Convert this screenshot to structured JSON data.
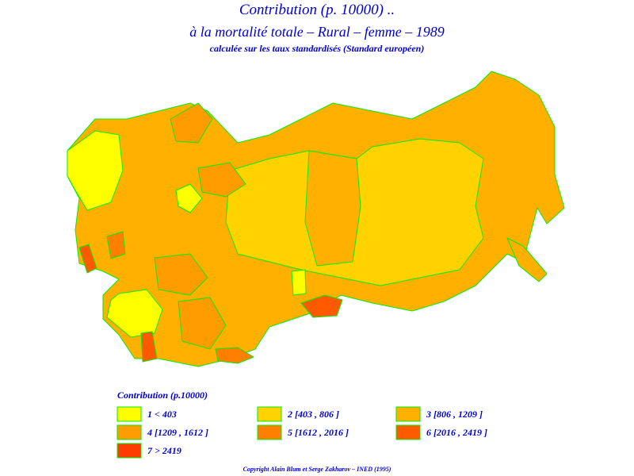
{
  "header": {
    "title": "Contribution  (p. 10000) ..",
    "subtitle": "à  la  mortalité  totale  –  Rural  –  femme  –  1989",
    "note": "calculée sur les taux standardisés (Standard européen)"
  },
  "legend": {
    "title": "Contribution  (p.10000)",
    "items": [
      {
        "label": "1  <  403",
        "color": "#ffff00"
      },
      {
        "label": "2  [403  ,  806  ]",
        "color": "#ffd200"
      },
      {
        "label": "3  [806  ,  1209  ]",
        "color": "#ffb000"
      },
      {
        "label": "4  [1209  ,  1612  ]",
        "color": "#ff9c00"
      },
      {
        "label": "5  [1612  ,  2016  ]",
        "color": "#ff8000"
      },
      {
        "label": "6  [2016  ,  2419  ]",
        "color": "#ff5a00"
      },
      {
        "label": "7  >  2419",
        "color": "#ff3c00"
      }
    ]
  },
  "footer": {
    "copyright": "Copyright  Alain  Blum  et  Serge  Zakharov  –  INED  (1995)"
  }
}
